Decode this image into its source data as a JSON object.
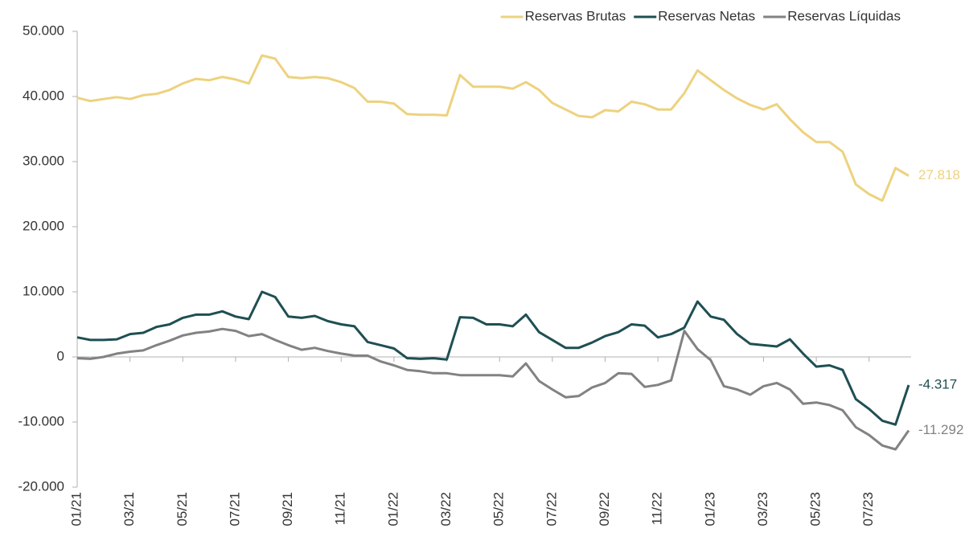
{
  "chart_data": {
    "type": "line",
    "categories": [
      "01/21",
      null,
      null,
      null,
      "03/21",
      null,
      null,
      null,
      "05/21",
      null,
      null,
      null,
      "07/21",
      null,
      null,
      null,
      "09/21",
      null,
      null,
      null,
      "11/21",
      null,
      null,
      null,
      "01/22",
      null,
      null,
      null,
      "03/22",
      null,
      null,
      null,
      "05/22",
      null,
      null,
      null,
      "07/22",
      null,
      null,
      null,
      "09/22",
      null,
      null,
      null,
      "11/22",
      null,
      null,
      null,
      "01/23",
      null,
      null,
      null,
      "03/23",
      null,
      null,
      null,
      "05/23",
      null,
      null,
      null,
      "07/23",
      null,
      null,
      null
    ],
    "series": [
      {
        "name": "Reservas Brutas",
        "color": "#edd27f",
        "last_label": "27.818",
        "values": [
          39800,
          39300,
          39600,
          39900,
          39600,
          40200,
          40400,
          41000,
          42000,
          42700,
          42500,
          43000,
          42600,
          42000,
          46300,
          45800,
          43000,
          42800,
          43000,
          42800,
          42200,
          41300,
          39200,
          39200,
          38900,
          37300,
          37200,
          37200,
          37100,
          43300,
          41500,
          41500,
          41500,
          41200,
          42200,
          41000,
          39000,
          38000,
          37000,
          36800,
          37900,
          37700,
          39200,
          38800,
          38000,
          38000,
          40500,
          44000,
          42500,
          41000,
          39700,
          38700,
          38000,
          38800,
          36500,
          34500,
          33000,
          33000,
          31500,
          26500,
          25000,
          24000,
          29000,
          27818
        ]
      },
      {
        "name": "Reservas Netas",
        "color": "#1f4f53",
        "last_label": "-4.317",
        "values": [
          3000,
          2600,
          2600,
          2700,
          3500,
          3700,
          4600,
          5000,
          6000,
          6500,
          6500,
          7000,
          6200,
          5800,
          10000,
          9200,
          6200,
          6000,
          6300,
          5500,
          5000,
          4700,
          2300,
          1800,
          1300,
          -200,
          -300,
          -200,
          -400,
          6100,
          6000,
          5000,
          5000,
          4700,
          6500,
          3800,
          2600,
          1400,
          1400,
          2200,
          3200,
          3800,
          5000,
          4800,
          3000,
          3500,
          4500,
          8500,
          6200,
          5700,
          3500,
          2000,
          1800,
          1600,
          2700,
          500,
          -1500,
          -1300,
          -2000,
          -6500,
          -8000,
          -9800,
          -10400,
          -4317
        ]
      },
      {
        "name": "Reservas Líquidas",
        "color": "#828282",
        "last_label": "-11.292",
        "values": [
          -200,
          -300,
          0,
          500,
          800,
          1000,
          1800,
          2500,
          3300,
          3700,
          3900,
          4300,
          4000,
          3200,
          3500,
          2600,
          1800,
          1100,
          1400,
          900,
          500,
          200,
          200,
          -700,
          -1300,
          -2000,
          -2200,
          -2500,
          -2500,
          -2800,
          -2800,
          -2800,
          -2800,
          -3000,
          -1000,
          -3700,
          -5000,
          -6200,
          -6000,
          -4700,
          -4000,
          -2500,
          -2600,
          -4600,
          -4300,
          -3600,
          4000,
          1200,
          -500,
          -4500,
          -5000,
          -5800,
          -4500,
          -4000,
          -5000,
          -7200,
          -7000,
          -7400,
          -8200,
          -10800,
          -12000,
          -13600,
          -14200,
          -11292
        ]
      }
    ],
    "ylim": [
      -20000,
      50000
    ],
    "yticks": [
      {
        "value": -20000,
        "label": "-20.000"
      },
      {
        "value": -10000,
        "label": "-10.000"
      },
      0,
      {
        "value": 10000,
        "label": "10.000"
      },
      {
        "value": 20000,
        "label": "20.000"
      },
      {
        "value": 30000,
        "label": "30.000"
      },
      {
        "value": 40000,
        "label": "40.000"
      },
      {
        "value": 50000,
        "label": "50.000"
      }
    ],
    "legend": "top-right"
  }
}
